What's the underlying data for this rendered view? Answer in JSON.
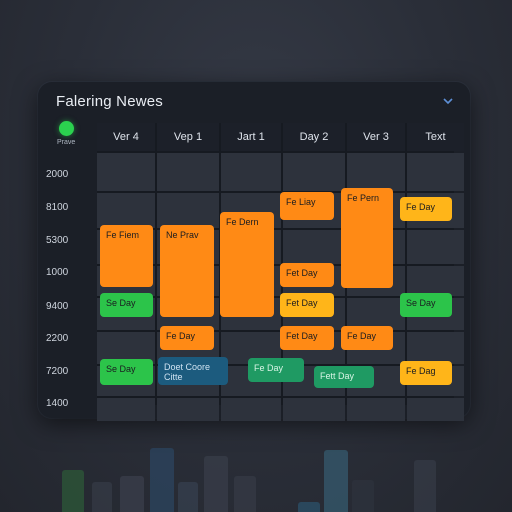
{
  "panel": {
    "title": "Falering Newes"
  },
  "status": {
    "label": "Prave",
    "color": "#2bd14f"
  },
  "columns": [
    "Ver 4",
    "Vep 1",
    "Jart 1",
    "Day 2",
    "Ver 3",
    "Text"
  ],
  "times": [
    "2000",
    "8100",
    "5300",
    "1000",
    "9400",
    "2200",
    "7200",
    "1400"
  ],
  "events": [
    {
      "label": "Fe Fiem",
      "color": "orange"
    },
    {
      "label": "Ne Prav",
      "color": "orange"
    },
    {
      "label": "Fe Dern",
      "color": "orange"
    },
    {
      "label": "Fe Liay",
      "color": "orange"
    },
    {
      "label": "Fe Pern",
      "color": "orange"
    },
    {
      "label": "Fe Day",
      "color": "yellow"
    },
    {
      "label": "Fet Day",
      "color": "orange"
    },
    {
      "label": "Fet Day",
      "color": "yellow"
    },
    {
      "label": "Se Day",
      "color": "green"
    },
    {
      "label": "Se Day",
      "color": "green"
    },
    {
      "label": "Fe Day",
      "color": "orange"
    },
    {
      "label": "Fet Day",
      "color": "orange"
    },
    {
      "label": "Fe Day",
      "color": "orange"
    },
    {
      "label": "Se Day",
      "color": "green"
    },
    {
      "label": "Doet Coore Citte",
      "color": "blue"
    },
    {
      "label": "Fe Day",
      "color": "teal"
    },
    {
      "label": "Fett Day",
      "color": "teal"
    },
    {
      "label": "Fe Dag",
      "color": "yellow"
    }
  ]
}
